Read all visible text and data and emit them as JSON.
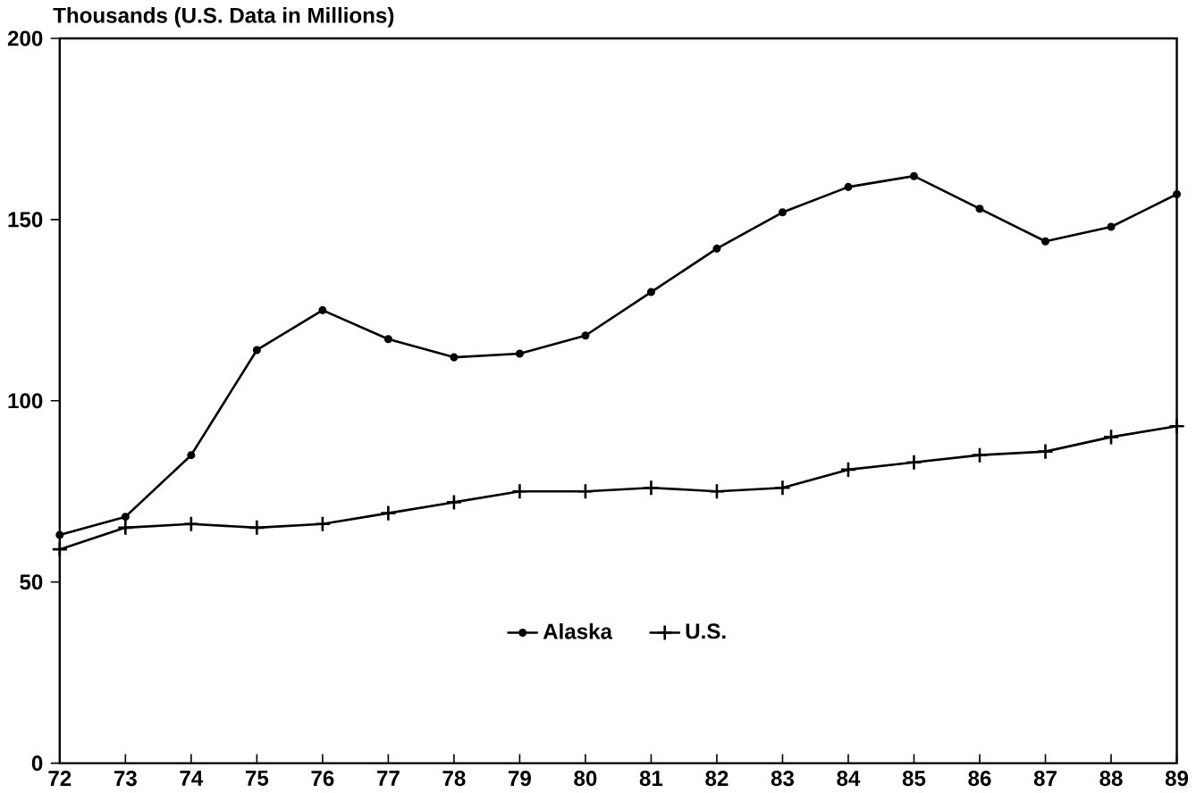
{
  "chart_data": {
    "type": "line",
    "ylabel": "Thousands (U.S. Data in Millions)",
    "x": [
      72,
      73,
      74,
      75,
      76,
      77,
      78,
      79,
      80,
      81,
      82,
      83,
      84,
      85,
      86,
      87,
      88,
      89
    ],
    "series": [
      {
        "name": "Alaska",
        "color": "#000000",
        "marker": "circle",
        "values": [
          63,
          68,
          85,
          114,
          125,
          117,
          112,
          113,
          118,
          130,
          142,
          152,
          159,
          162,
          153,
          144,
          148,
          157
        ]
      },
      {
        "name": "U.S.",
        "color": "#000000",
        "marker": "cross",
        "values": [
          59,
          65,
          66,
          65,
          66,
          69,
          72,
          75,
          75,
          76,
          75,
          76,
          81,
          83,
          85,
          86,
          90,
          93
        ]
      }
    ],
    "xlim": [
      72,
      89
    ],
    "xticks": [
      72,
      73,
      74,
      75,
      76,
      77,
      78,
      79,
      80,
      81,
      82,
      83,
      84,
      85,
      86,
      87,
      88,
      89
    ],
    "ylim": [
      0,
      200
    ],
    "yticks": [
      0,
      50,
      100,
      150,
      200
    ],
    "grid": false,
    "legend": "bottom",
    "line_style": "solid"
  }
}
